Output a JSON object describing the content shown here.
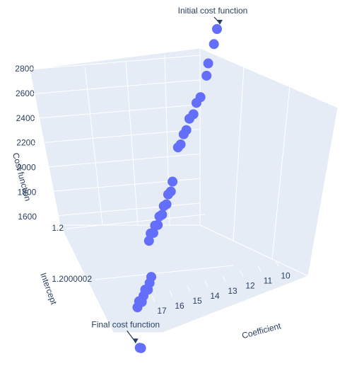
{
  "chart_data": {
    "type": "scatter3d",
    "x_label": "Coefficient",
    "y_label": "Intercept",
    "z_label": "Cost function",
    "color": "#636efa",
    "x": [
      10.0,
      10.3,
      10.8,
      11.0,
      11.6,
      11.9,
      12.2,
      12.5,
      12.8,
      13.0,
      13.3,
      13.5,
      14.2,
      14.4,
      14.6,
      14.8,
      15.0,
      15.2,
      15.4,
      15.6,
      15.8,
      16.0,
      16.2,
      16.4,
      16.6,
      16.8,
      17.0,
      17.2,
      17.4,
      17.6,
      17.8,
      18.0,
      18.1,
      18.2
    ],
    "y": [
      1.2,
      1.20000001,
      1.20000002,
      1.20000003,
      1.20000005,
      1.20000005,
      1.20000006,
      1.20000006,
      1.20000007,
      1.20000007,
      1.20000008,
      1.20000008,
      1.20000012,
      1.20000013,
      1.20000013,
      1.20000014,
      1.20000014,
      1.20000015,
      1.20000015,
      1.20000016,
      1.20000016,
      1.20000017,
      1.20000017,
      1.20000018,
      1.20000023,
      1.20000024,
      1.20000025,
      1.20000025,
      1.20000026,
      1.20000027,
      1.20000027,
      1.20000028,
      1.20000033,
      1.20000033
    ],
    "z": [
      2850,
      2760,
      2620,
      2560,
      2450,
      2380,
      2320,
      2260,
      2200,
      2150,
      2100,
      2060,
      1950,
      1910,
      1870,
      1830,
      1800,
      1770,
      1740,
      1710,
      1690,
      1670,
      1650,
      1630,
      1600,
      1590,
      1575,
      1560,
      1550,
      1540,
      1530,
      1520,
      1460,
      1455
    ],
    "xticks": [
      10,
      11,
      12,
      13,
      14,
      15,
      16,
      17
    ],
    "yticks": [
      1.2,
      1.2000002
    ],
    "zticks": [
      1600,
      1800,
      2000,
      2200,
      2400,
      2600,
      2800
    ],
    "annotations": [
      {
        "text": "Initial cost function",
        "point": 0
      },
      {
        "text": "Final cost function",
        "point": 33
      }
    ]
  }
}
